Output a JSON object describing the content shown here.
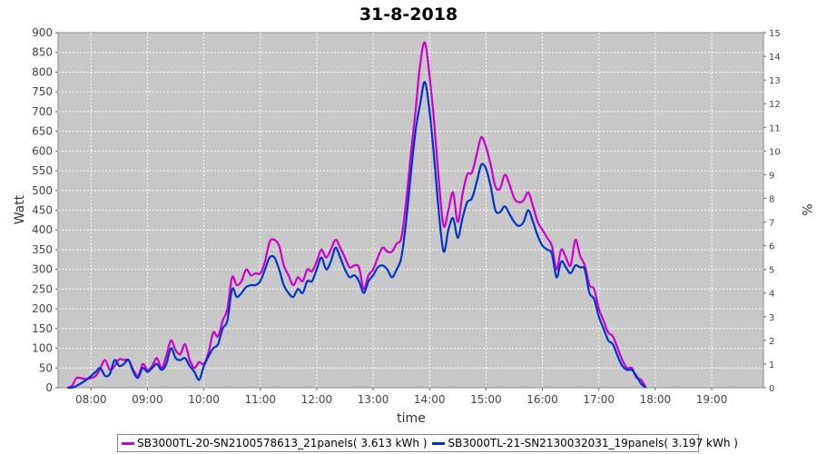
{
  "chart_data": {
    "type": "line",
    "title": "31-8-2018",
    "xlabel": "time",
    "ylabel": "Watt",
    "y2label": "%",
    "ylim": [
      0,
      900
    ],
    "y2lim": [
      0,
      15
    ],
    "xlim": [
      "07:25",
      "19:55"
    ],
    "x_ticks": [
      "08:00",
      "09:00",
      "10:00",
      "11:00",
      "12:00",
      "13:00",
      "14:00",
      "15:00",
      "16:00",
      "17:00",
      "18:00",
      "19:00"
    ],
    "y_ticks": [
      0,
      50,
      100,
      150,
      200,
      250,
      300,
      350,
      400,
      450,
      500,
      550,
      600,
      650,
      700,
      750,
      800,
      850,
      900
    ],
    "y2_ticks": [
      0,
      1,
      2,
      3,
      4,
      5,
      6,
      7,
      8,
      9,
      10,
      11,
      12,
      13,
      14,
      15
    ],
    "grid": true,
    "legend_position": "bottom",
    "background": "#c8c8c8",
    "series": [
      {
        "name": "SB3000TL-20-SN2100578613_21panels( 3.613 kWh )",
        "color": "#cc00cc",
        "points": [
          [
            "07:35",
            0
          ],
          [
            "07:40",
            5
          ],
          [
            "07:45",
            25
          ],
          [
            "07:55",
            22
          ],
          [
            "08:05",
            30
          ],
          [
            "08:10",
            50
          ],
          [
            "08:15",
            70
          ],
          [
            "08:20",
            45
          ],
          [
            "08:25",
            55
          ],
          [
            "08:30",
            72
          ],
          [
            "08:35",
            70
          ],
          [
            "08:40",
            70
          ],
          [
            "08:45",
            45
          ],
          [
            "08:50",
            30
          ],
          [
            "08:55",
            60
          ],
          [
            "09:00",
            45
          ],
          [
            "09:05",
            55
          ],
          [
            "09:10",
            75
          ],
          [
            "09:15",
            50
          ],
          [
            "09:20",
            80
          ],
          [
            "09:25",
            120
          ],
          [
            "09:30",
            95
          ],
          [
            "09:35",
            85
          ],
          [
            "09:40",
            110
          ],
          [
            "09:45",
            70
          ],
          [
            "09:50",
            50
          ],
          [
            "09:55",
            65
          ],
          [
            "10:00",
            60
          ],
          [
            "10:05",
            90
          ],
          [
            "10:10",
            140
          ],
          [
            "10:15",
            130
          ],
          [
            "10:20",
            170
          ],
          [
            "10:25",
            200
          ],
          [
            "10:30",
            280
          ],
          [
            "10:35",
            260
          ],
          [
            "10:40",
            270
          ],
          [
            "10:45",
            300
          ],
          [
            "10:50",
            285
          ],
          [
            "10:55",
            290
          ],
          [
            "11:00",
            290
          ],
          [
            "11:05",
            320
          ],
          [
            "11:10",
            370
          ],
          [
            "11:15",
            375
          ],
          [
            "11:20",
            360
          ],
          [
            "11:25",
            310
          ],
          [
            "11:30",
            285
          ],
          [
            "11:35",
            260
          ],
          [
            "11:40",
            280
          ],
          [
            "11:45",
            270
          ],
          [
            "11:50",
            300
          ],
          [
            "11:55",
            295
          ],
          [
            "12:00",
            320
          ],
          [
            "12:05",
            350
          ],
          [
            "12:10",
            330
          ],
          [
            "12:15",
            350
          ],
          [
            "12:20",
            375
          ],
          [
            "12:25",
            355
          ],
          [
            "12:30",
            330
          ],
          [
            "12:35",
            305
          ],
          [
            "12:40",
            310
          ],
          [
            "12:45",
            305
          ],
          [
            "12:50",
            250
          ],
          [
            "12:55",
            285
          ],
          [
            "13:00",
            300
          ],
          [
            "13:05",
            330
          ],
          [
            "13:10",
            355
          ],
          [
            "13:15",
            345
          ],
          [
            "13:20",
            345
          ],
          [
            "13:25",
            365
          ],
          [
            "13:30",
            380
          ],
          [
            "13:35",
            470
          ],
          [
            "13:40",
            590
          ],
          [
            "13:45",
            700
          ],
          [
            "13:50",
            820
          ],
          [
            "13:55",
            875
          ],
          [
            "14:00",
            790
          ],
          [
            "14:05",
            670
          ],
          [
            "14:10",
            520
          ],
          [
            "14:15",
            410
          ],
          [
            "14:20",
            450
          ],
          [
            "14:25",
            495
          ],
          [
            "14:30",
            420
          ],
          [
            "14:35",
            490
          ],
          [
            "14:40",
            540
          ],
          [
            "14:45",
            545
          ],
          [
            "14:50",
            590
          ],
          [
            "14:55",
            635
          ],
          [
            "15:00",
            610
          ],
          [
            "15:05",
            565
          ],
          [
            "15:10",
            510
          ],
          [
            "15:15",
            505
          ],
          [
            "15:20",
            540
          ],
          [
            "15:25",
            515
          ],
          [
            "15:30",
            480
          ],
          [
            "15:35",
            470
          ],
          [
            "15:40",
            475
          ],
          [
            "15:45",
            495
          ],
          [
            "15:50",
            460
          ],
          [
            "15:55",
            420
          ],
          [
            "16:00",
            400
          ],
          [
            "16:05",
            380
          ],
          [
            "16:10",
            360
          ],
          [
            "16:15",
            300
          ],
          [
            "16:20",
            350
          ],
          [
            "16:25",
            330
          ],
          [
            "16:30",
            310
          ],
          [
            "16:35",
            375
          ],
          [
            "16:40",
            335
          ],
          [
            "16:45",
            310
          ],
          [
            "16:50",
            260
          ],
          [
            "16:55",
            250
          ],
          [
            "17:00",
            200
          ],
          [
            "17:05",
            170
          ],
          [
            "17:10",
            140
          ],
          [
            "17:15",
            130
          ],
          [
            "17:20",
            100
          ],
          [
            "17:25",
            70
          ],
          [
            "17:30",
            50
          ],
          [
            "17:35",
            50
          ],
          [
            "17:40",
            25
          ],
          [
            "17:45",
            20
          ],
          [
            "17:50",
            0
          ]
        ]
      },
      {
        "name": "SB3000TL-21-SN2130032031_19panels( 3.197 kWh )",
        "color": "#0033cc",
        "points": [
          [
            "07:35",
            0
          ],
          [
            "07:40",
            0
          ],
          [
            "07:45",
            5
          ],
          [
            "07:55",
            20
          ],
          [
            "08:05",
            40
          ],
          [
            "08:10",
            50
          ],
          [
            "08:15",
            30
          ],
          [
            "08:20",
            35
          ],
          [
            "08:25",
            70
          ],
          [
            "08:30",
            55
          ],
          [
            "08:35",
            60
          ],
          [
            "08:40",
            70
          ],
          [
            "08:45",
            40
          ],
          [
            "08:50",
            25
          ],
          [
            "08:55",
            50
          ],
          [
            "09:00",
            40
          ],
          [
            "09:05",
            50
          ],
          [
            "09:10",
            60
          ],
          [
            "09:15",
            45
          ],
          [
            "09:20",
            60
          ],
          [
            "09:25",
            100
          ],
          [
            "09:30",
            75
          ],
          [
            "09:35",
            70
          ],
          [
            "09:40",
            75
          ],
          [
            "09:45",
            55
          ],
          [
            "09:50",
            40
          ],
          [
            "09:55",
            20
          ],
          [
            "10:00",
            55
          ],
          [
            "10:05",
            80
          ],
          [
            "10:10",
            100
          ],
          [
            "10:15",
            110
          ],
          [
            "10:20",
            150
          ],
          [
            "10:25",
            170
          ],
          [
            "10:30",
            250
          ],
          [
            "10:35",
            230
          ],
          [
            "10:40",
            240
          ],
          [
            "10:45",
            255
          ],
          [
            "10:50",
            260
          ],
          [
            "10:55",
            260
          ],
          [
            "11:00",
            270
          ],
          [
            "11:05",
            300
          ],
          [
            "11:10",
            330
          ],
          [
            "11:15",
            330
          ],
          [
            "11:20",
            300
          ],
          [
            "11:25",
            260
          ],
          [
            "11:30",
            240
          ],
          [
            "11:35",
            230
          ],
          [
            "11:40",
            250
          ],
          [
            "11:45",
            240
          ],
          [
            "11:50",
            270
          ],
          [
            "11:55",
            270
          ],
          [
            "12:00",
            300
          ],
          [
            "12:05",
            330
          ],
          [
            "12:10",
            300
          ],
          [
            "12:15",
            320
          ],
          [
            "12:20",
            355
          ],
          [
            "12:25",
            330
          ],
          [
            "12:30",
            300
          ],
          [
            "12:35",
            280
          ],
          [
            "12:40",
            285
          ],
          [
            "12:45",
            270
          ],
          [
            "12:50",
            240
          ],
          [
            "12:55",
            270
          ],
          [
            "13:00",
            285
          ],
          [
            "13:05",
            305
          ],
          [
            "13:10",
            310
          ],
          [
            "13:15",
            300
          ],
          [
            "13:20",
            280
          ],
          [
            "13:25",
            300
          ],
          [
            "13:30",
            330
          ],
          [
            "13:35",
            420
          ],
          [
            "13:40",
            540
          ],
          [
            "13:45",
            650
          ],
          [
            "13:50",
            720
          ],
          [
            "13:55",
            775
          ],
          [
            "14:00",
            700
          ],
          [
            "14:05",
            580
          ],
          [
            "14:10",
            440
          ],
          [
            "14:15",
            345
          ],
          [
            "14:20",
            400
          ],
          [
            "14:25",
            430
          ],
          [
            "14:30",
            380
          ],
          [
            "14:35",
            430
          ],
          [
            "14:40",
            470
          ],
          [
            "14:45",
            480
          ],
          [
            "14:50",
            520
          ],
          [
            "14:55",
            565
          ],
          [
            "15:00",
            555
          ],
          [
            "15:05",
            510
          ],
          [
            "15:10",
            450
          ],
          [
            "15:15",
            445
          ],
          [
            "15:20",
            460
          ],
          [
            "15:25",
            440
          ],
          [
            "15:30",
            420
          ],
          [
            "15:35",
            410
          ],
          [
            "15:40",
            420
          ],
          [
            "15:45",
            450
          ],
          [
            "15:50",
            420
          ],
          [
            "15:55",
            385
          ],
          [
            "16:00",
            360
          ],
          [
            "16:05",
            350
          ],
          [
            "16:10",
            340
          ],
          [
            "16:15",
            280
          ],
          [
            "16:20",
            320
          ],
          [
            "16:25",
            305
          ],
          [
            "16:30",
            290
          ],
          [
            "16:35",
            310
          ],
          [
            "16:40",
            305
          ],
          [
            "16:45",
            300
          ],
          [
            "16:50",
            240
          ],
          [
            "16:55",
            225
          ],
          [
            "17:00",
            180
          ],
          [
            "17:05",
            150
          ],
          [
            "17:10",
            120
          ],
          [
            "17:15",
            110
          ],
          [
            "17:20",
            80
          ],
          [
            "17:25",
            55
          ],
          [
            "17:30",
            45
          ],
          [
            "17:35",
            45
          ],
          [
            "17:40",
            30
          ],
          [
            "17:45",
            10
          ],
          [
            "17:50",
            0
          ]
        ]
      }
    ]
  }
}
